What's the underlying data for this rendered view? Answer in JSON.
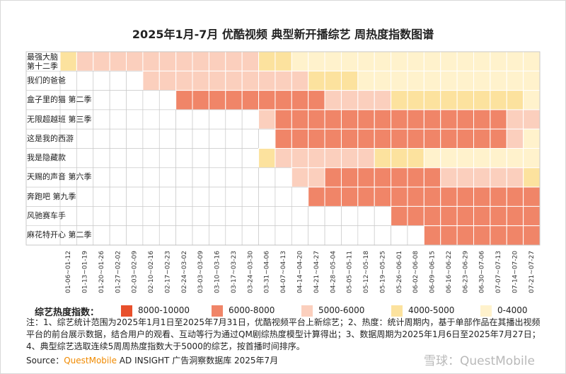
{
  "chart_data": {
    "type": "heatmap",
    "title": "2025年1月-7月 优酷视频 典型新开播综艺 周热度指数图谱",
    "x_categories": [
      "01-06~01-12",
      "01-13~01-19",
      "01-20~01-26",
      "01-27~02-02",
      "02-03~02-09",
      "02-10~02-16",
      "02-17~02-23",
      "02-24~03-02",
      "03-03~03-09",
      "03-10~03-16",
      "03-17~03-23",
      "03-24~03-30",
      "03-31~04-06",
      "04-07~04-13",
      "04-14~04-20",
      "04-21~04-27",
      "04-28~05-04",
      "05-05~05-11",
      "05-12~05-18",
      "05-19~05-25",
      "05-26~06-01",
      "06-02~06-08",
      "06-09~06-15",
      "06-16~06-22",
      "06-23~06-29",
      "06-30~07-06",
      "07-07~07-13",
      "07-14~07-20",
      "07-21~07-27"
    ],
    "y_categories": [
      "最强大脑第十二季",
      "我们的爸爸",
      "盒子里的猫 第二季",
      "无限超越班 第三季",
      "这是我的西游",
      "我是隐藏款",
      "天赐的声音 第六季",
      "奔跑吧 第九季",
      "风驰赛车手",
      "麻花特开心 第二季"
    ],
    "legend": {
      "title": "综艺热度指数：",
      "bins": [
        {
          "label": "8000-10000",
          "color": "#e8502c"
        },
        {
          "label": "6000-8000",
          "color": "#f08568"
        },
        {
          "label": "5000-6000",
          "color": "#fbcfbd"
        },
        {
          "label": "4000-5000",
          "color": "#fce29e"
        },
        {
          "label": "0-4000",
          "color": "#fff2cc"
        }
      ]
    },
    "cells": [
      [
        3,
        2,
        2,
        2,
        2,
        2,
        2,
        2,
        2,
        2,
        2,
        2,
        3,
        3,
        4,
        4,
        4,
        4,
        4,
        4,
        4,
        4,
        4,
        4,
        4,
        4,
        4,
        4,
        4
      ],
      [
        null,
        null,
        null,
        null,
        null,
        2,
        2,
        2,
        2,
        2,
        2,
        2,
        2,
        2,
        2,
        3,
        3,
        3,
        4,
        4,
        4,
        4,
        4,
        4,
        4,
        4,
        4,
        4,
        4
      ],
      [
        null,
        null,
        null,
        null,
        null,
        null,
        null,
        1,
        1,
        1,
        1,
        1,
        1,
        1,
        1,
        1,
        2,
        2,
        2,
        2,
        3,
        3,
        3,
        3,
        3,
        3,
        3,
        3,
        4
      ],
      [
        null,
        null,
        null,
        null,
        null,
        null,
        null,
        null,
        null,
        null,
        null,
        null,
        2,
        1,
        1,
        1,
        1,
        1,
        1,
        1,
        1,
        1,
        1,
        1,
        1,
        1,
        1,
        2,
        2
      ],
      [
        null,
        null,
        null,
        null,
        null,
        null,
        null,
        null,
        null,
        null,
        null,
        null,
        null,
        1,
        1,
        1,
        1,
        1,
        1,
        1,
        1,
        1,
        1,
        1,
        1,
        1,
        1,
        2,
        4
      ],
      [
        null,
        null,
        null,
        null,
        null,
        null,
        null,
        null,
        null,
        null,
        null,
        null,
        3,
        2,
        2,
        2,
        2,
        2,
        2,
        3,
        3,
        3,
        4,
        4,
        4,
        4,
        4,
        4,
        4
      ],
      [
        null,
        null,
        null,
        null,
        null,
        null,
        null,
        null,
        null,
        null,
        null,
        null,
        null,
        null,
        2,
        2,
        1,
        1,
        1,
        1,
        1,
        1,
        1,
        2,
        2,
        2,
        2,
        2,
        3
      ],
      [
        null,
        null,
        null,
        null,
        null,
        null,
        null,
        null,
        null,
        null,
        null,
        null,
        null,
        null,
        null,
        1,
        1,
        1,
        1,
        1,
        1,
        1,
        1,
        1,
        1,
        1,
        1,
        1,
        1
      ],
      [
        null,
        null,
        null,
        null,
        null,
        null,
        null,
        null,
        null,
        null,
        null,
        null,
        null,
        null,
        null,
        null,
        null,
        null,
        null,
        null,
        1,
        1,
        1,
        1,
        1,
        1,
        1,
        1,
        1
      ],
      [
        null,
        null,
        null,
        null,
        null,
        null,
        null,
        null,
        null,
        null,
        null,
        null,
        null,
        null,
        null,
        null,
        null,
        null,
        null,
        null,
        null,
        null,
        1,
        1,
        1,
        1,
        1,
        1,
        1
      ]
    ],
    "note": "注：1、综艺统计范围为2025年1月1日至2025年7月31日，优酷视频平台上新综艺；2、热度：统计周期内，基于单部作品在其播出视频平台的前台展示数据，结合用户的观看、互动等行为通过QM剧综热度模型计算得出；3、数据周期为2025年1月6日至2025年7月27日；4、典型综艺选取连续5周周热度指数大于5000的综艺，按首播时间排序。",
    "source": {
      "prefix": "Source：",
      "brand": "QuestMobile",
      "rest": " AD INSIGHT 广告洞察数据库 2025年7月"
    },
    "watermark": "雪球：QuestMobile"
  }
}
